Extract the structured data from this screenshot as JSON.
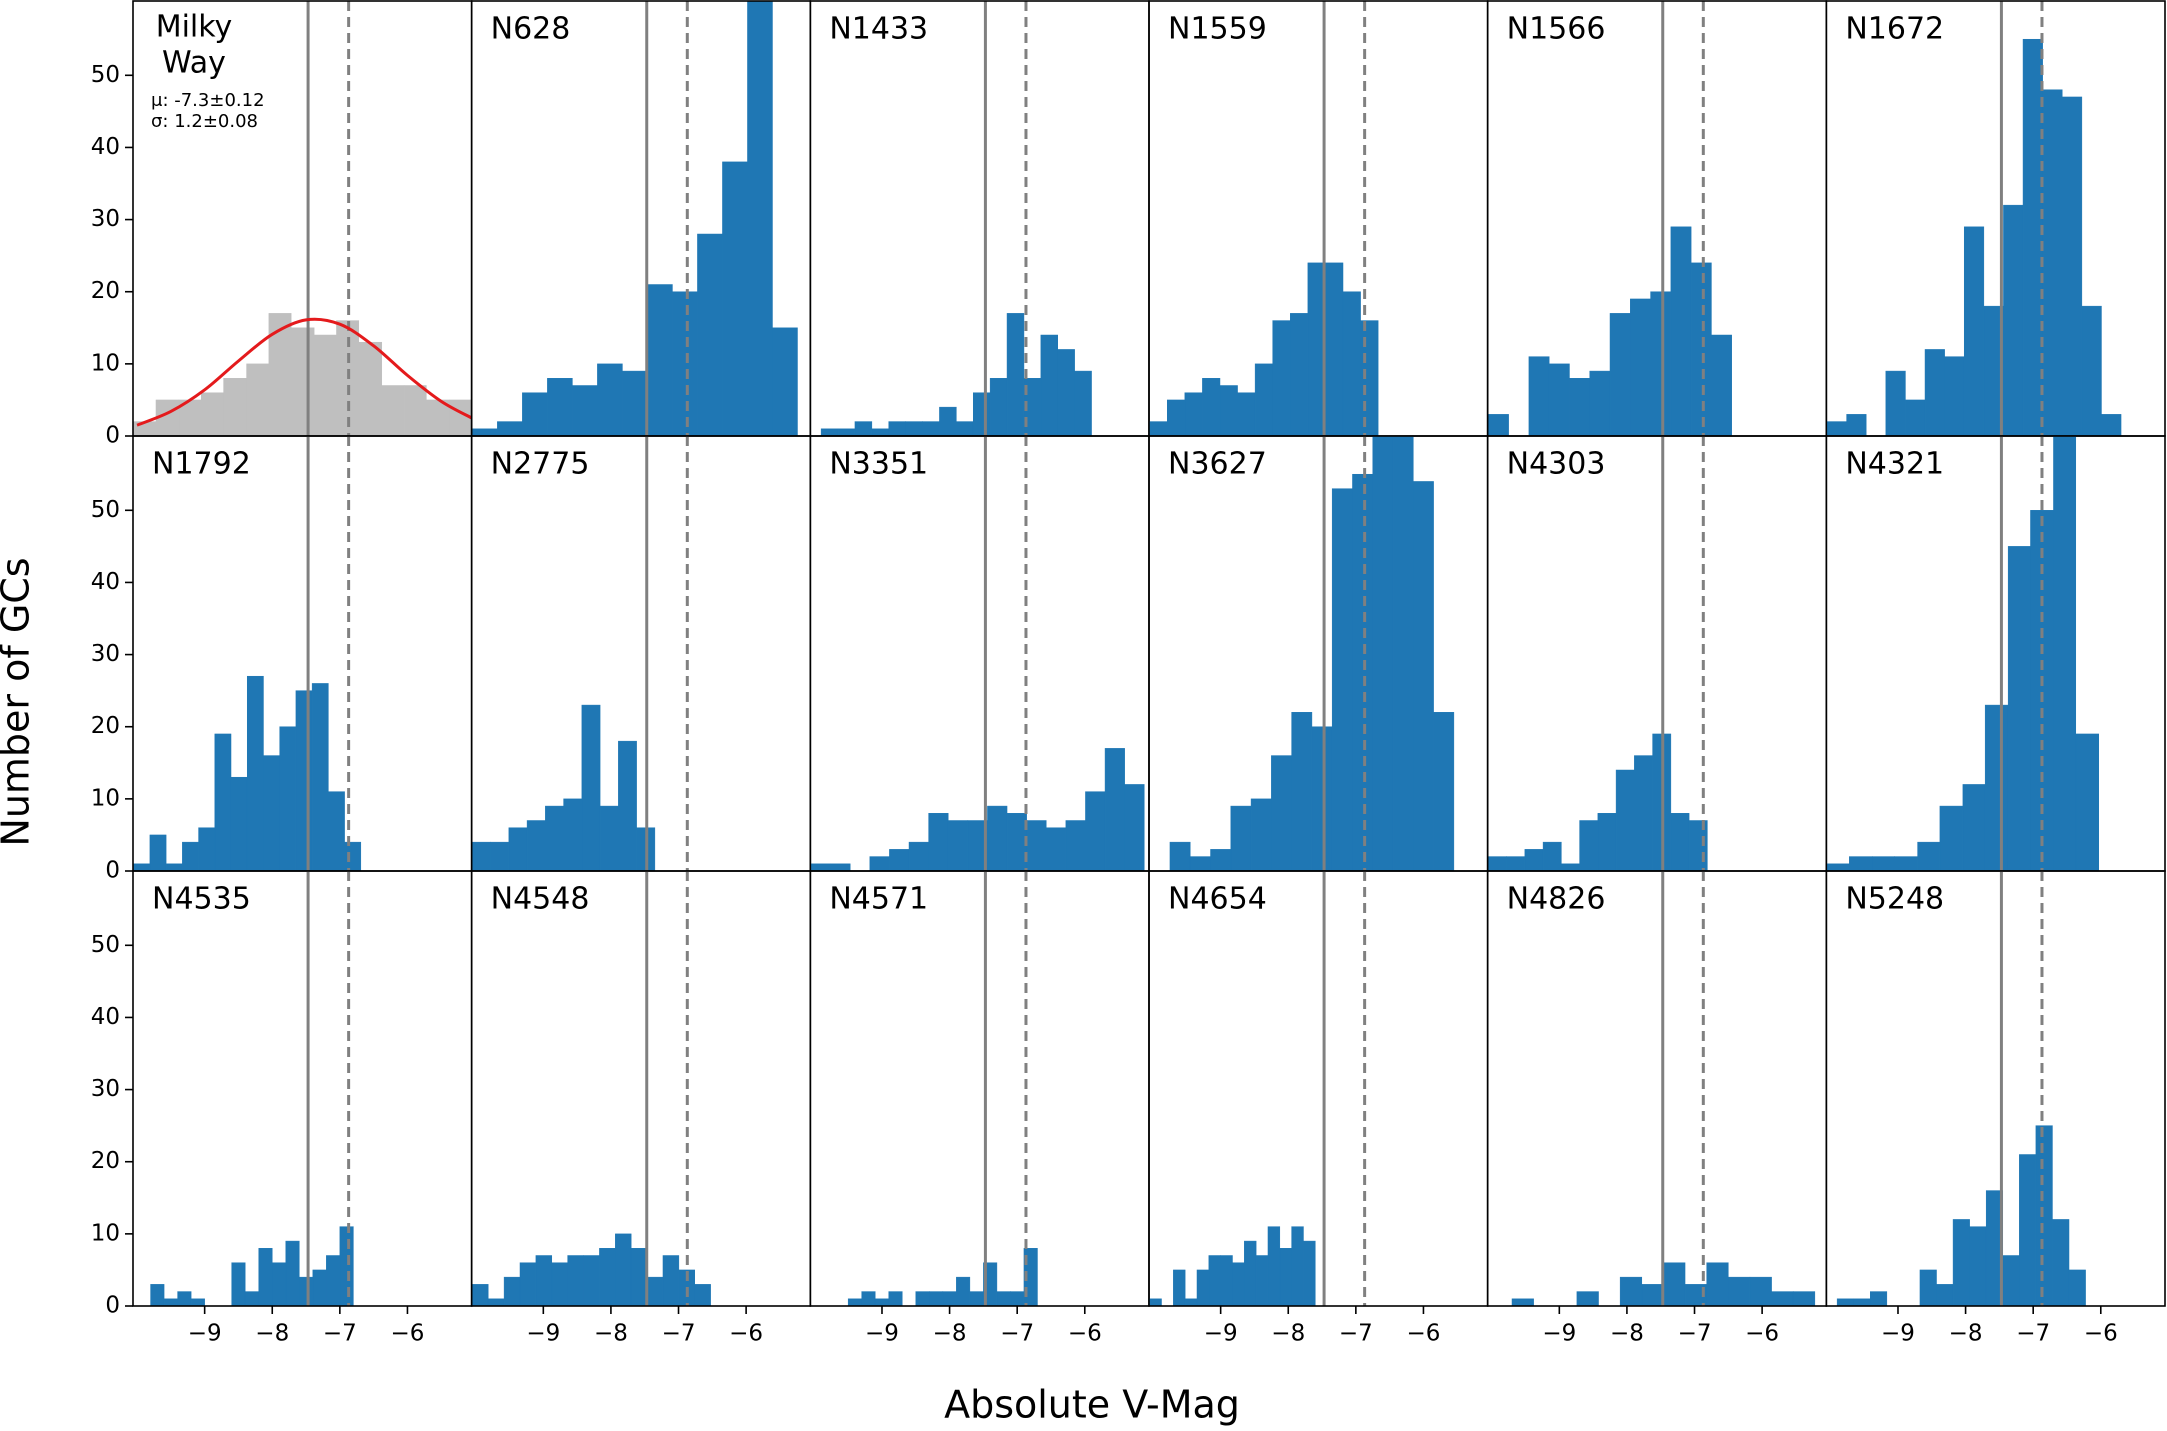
{
  "figure": {
    "xlabel": "Absolute V-Mag",
    "ylabel": "Number of GCs",
    "vlines": [
      {
        "x": -7.47,
        "dashed": false,
        "color": "#808080"
      },
      {
        "x": -6.87,
        "dashed": true,
        "color": "#808080"
      }
    ]
  },
  "chart_data": [
    {
      "type": "histogram",
      "title": [
        "Milky",
        "Way"
      ],
      "annotations": [
        "μ: -7.3±0.12",
        "σ: 1.2±0.08"
      ],
      "color": "#bfbfbf",
      "xlim": [
        -10.06,
        -5.05
      ],
      "ylim": [
        0,
        60.3
      ],
      "yticks": [
        0,
        10,
        20,
        30,
        40,
        50
      ],
      "bins": [
        -10.05,
        -9.72,
        -9.38,
        -9.05,
        -8.72,
        -8.38,
        -8.05,
        -7.72,
        -7.38,
        -7.05,
        -6.72,
        -6.38,
        -6.05,
        -5.72,
        -5.38,
        -5.05
      ],
      "counts": [
        2,
        5,
        5,
        6,
        8,
        10,
        17,
        15,
        14,
        16,
        13,
        7,
        7,
        5,
        5
      ],
      "fit": {
        "color": "#e41a1c",
        "x": [
          -10,
          -9.5,
          -9,
          -8.5,
          -8,
          -7.5,
          -7,
          -6.5,
          -6,
          -5.5,
          -5.05
        ],
        "y": [
          1.5,
          3.4,
          6.4,
          10.4,
          14.1,
          16.1,
          15.5,
          12.5,
          8.4,
          4.8,
          2.5
        ]
      }
    },
    {
      "type": "histogram",
      "title": "N628",
      "color": "#1f77b4",
      "xlim": [
        -10.06,
        -5.05
      ],
      "ylim": [
        0,
        60.3
      ],
      "bins": [
        -10.05,
        -9.68,
        -9.31,
        -8.94,
        -8.57,
        -8.2,
        -7.83,
        -7.46,
        -7.09,
        -6.72,
        -6.35,
        -5.98,
        -5.61,
        -5.24
      ],
      "counts": [
        1,
        2,
        6,
        8,
        7,
        10,
        9,
        21,
        20,
        28,
        38,
        62,
        15
      ]
    },
    {
      "type": "histogram",
      "title": "N1433",
      "color": "#1f77b4",
      "xlim": [
        -10.06,
        -5.05
      ],
      "ylim": [
        0,
        60.3
      ],
      "bins": [
        -9.9,
        -9.65,
        -9.4,
        -9.15,
        -8.9,
        -8.65,
        -8.4,
        -8.15,
        -7.9,
        -7.65,
        -7.4,
        -7.15,
        -6.9,
        -6.65,
        -6.4,
        -6.15,
        -5.9
      ],
      "counts": [
        1,
        1,
        2,
        1,
        2,
        2,
        2,
        4,
        2,
        6,
        8,
        17,
        8,
        14,
        12,
        9
      ]
    },
    {
      "type": "histogram",
      "title": "N1559",
      "color": "#1f77b4",
      "xlim": [
        -10.06,
        -5.05
      ],
      "ylim": [
        0,
        60.3
      ],
      "bins": [
        -10.05,
        -9.79,
        -9.53,
        -9.27,
        -9.01,
        -8.75,
        -8.49,
        -8.23,
        -7.97,
        -7.71,
        -7.45,
        -7.19,
        -6.93,
        -6.67
      ],
      "counts": [
        2,
        5,
        6,
        8,
        7,
        6,
        10,
        16,
        17,
        24,
        24,
        20,
        16
      ]
    },
    {
      "type": "histogram",
      "title": "N1566",
      "color": "#1f77b4",
      "xlim": [
        -10.06,
        -5.05
      ],
      "ylim": [
        0,
        60.3
      ],
      "bins": [
        -10.05,
        -9.75,
        -9.45,
        -9.15,
        -8.85,
        -8.55,
        -8.25,
        -7.95,
        -7.65,
        -7.35,
        -7.05,
        -6.75,
        -6.45
      ],
      "counts": [
        3,
        0,
        11,
        10,
        8,
        9,
        17,
        19,
        20,
        29,
        24,
        14
      ]
    },
    {
      "type": "histogram",
      "title": "N1672",
      "color": "#1f77b4",
      "xlim": [
        -10.06,
        -5.05
      ],
      "ylim": [
        0,
        60.3
      ],
      "bins": [
        -10.05,
        -9.76,
        -9.47,
        -9.18,
        -8.89,
        -8.6,
        -8.31,
        -8.02,
        -7.73,
        -7.44,
        -7.15,
        -6.86,
        -6.57,
        -6.28,
        -5.99,
        -5.7
      ],
      "counts": [
        2,
        3,
        0,
        9,
        5,
        12,
        11,
        29,
        18,
        32,
        55,
        48,
        47,
        18,
        3
      ]
    },
    {
      "type": "histogram",
      "title": "N1792",
      "color": "#1f77b4",
      "xlim": [
        -10.06,
        -5.05
      ],
      "ylim": [
        0,
        60.3
      ],
      "yticks": [
        0,
        10,
        20,
        30,
        40,
        50
      ],
      "bins": [
        -10.05,
        -9.81,
        -9.57,
        -9.33,
        -9.09,
        -8.85,
        -8.61,
        -8.37,
        -8.13,
        -7.89,
        -7.65,
        -7.41,
        -7.17,
        -6.93,
        -6.69
      ],
      "counts": [
        1,
        5,
        1,
        4,
        6,
        19,
        13,
        27,
        16,
        20,
        25,
        26,
        11,
        4
      ]
    },
    {
      "type": "histogram",
      "title": "N2775",
      "color": "#1f77b4",
      "xlim": [
        -10.06,
        -5.05
      ],
      "ylim": [
        0,
        60.3
      ],
      "bins": [
        -10.05,
        -9.78,
        -9.51,
        -9.24,
        -8.97,
        -8.7,
        -8.43,
        -8.16,
        -7.89,
        -7.62,
        -7.35
      ],
      "counts": [
        4,
        4,
        6,
        7,
        9,
        10,
        23,
        9,
        18,
        6
      ]
    },
    {
      "type": "histogram",
      "title": "N3351",
      "color": "#1f77b4",
      "xlim": [
        -10.06,
        -5.05
      ],
      "ylim": [
        0,
        60.3
      ],
      "bins": [
        -10.05,
        -9.76,
        -9.47,
        -9.18,
        -8.89,
        -8.6,
        -8.31,
        -8.02,
        -7.73,
        -7.44,
        -7.15,
        -6.86,
        -6.57,
        -6.28,
        -5.99,
        -5.7,
        -5.41,
        -5.12
      ],
      "counts": [
        1,
        1,
        0,
        2,
        3,
        4,
        8,
        7,
        7,
        9,
        8,
        7,
        6,
        7,
        11,
        17,
        12
      ]
    },
    {
      "type": "histogram",
      "title": "N3627",
      "color": "#1f77b4",
      "xlim": [
        -10.06,
        -5.05
      ],
      "ylim": [
        0,
        60.3
      ],
      "bins": [
        -10.05,
        -9.75,
        -9.45,
        -9.15,
        -8.85,
        -8.55,
        -8.25,
        -7.95,
        -7.65,
        -7.35,
        -7.05,
        -6.75,
        -6.45,
        -6.15,
        -5.85,
        -5.55
      ],
      "counts": [
        0,
        4,
        2,
        3,
        9,
        10,
        16,
        22,
        20,
        53,
        55,
        62,
        62,
        54,
        22
      ]
    },
    {
      "type": "histogram",
      "title": "N4303",
      "color": "#1f77b4",
      "xlim": [
        -10.06,
        -5.05
      ],
      "ylim": [
        0,
        60.3
      ],
      "bins": [
        -10.05,
        -9.78,
        -9.51,
        -9.24,
        -8.97,
        -8.7,
        -8.43,
        -8.16,
        -7.89,
        -7.62,
        -7.35,
        -7.08,
        -6.81
      ],
      "counts": [
        2,
        2,
        3,
        4,
        1,
        7,
        8,
        14,
        16,
        19,
        8,
        7
      ]
    },
    {
      "type": "histogram",
      "title": "N4321",
      "color": "#1f77b4",
      "xlim": [
        -10.06,
        -5.05
      ],
      "ylim": [
        0,
        60.3
      ],
      "bins": [
        -10.05,
        -9.72,
        -9.38,
        -9.05,
        -8.71,
        -8.38,
        -8.04,
        -7.71,
        -7.37,
        -7.04,
        -6.7,
        -6.37,
        -6.03
      ],
      "counts": [
        1,
        2,
        2,
        2,
        4,
        9,
        12,
        23,
        45,
        50,
        62,
        19
      ]
    },
    {
      "type": "histogram",
      "title": "N4535",
      "color": "#1f77b4",
      "xlim": [
        -10.06,
        -5.05
      ],
      "ylim": [
        0,
        60.3
      ],
      "yticks": [
        0,
        10,
        20,
        30,
        40,
        50
      ],
      "xticks": [
        {
          "value": -9,
          "label": "−9"
        },
        {
          "value": -8,
          "label": "−8"
        },
        {
          "value": -7,
          "label": "−7"
        },
        {
          "value": -6,
          "label": "−6"
        }
      ],
      "bins": [
        -9.8,
        -9.6,
        -9.4,
        -9.2,
        -9.0,
        -8.8,
        -8.6,
        -8.4,
        -8.2,
        -8.0,
        -7.8,
        -7.6,
        -7.4,
        -7.2,
        -7.0,
        -6.8
      ],
      "counts": [
        3,
        1,
        2,
        1,
        0,
        0,
        6,
        2,
        8,
        6,
        9,
        4,
        5,
        7,
        11
      ]
    },
    {
      "type": "histogram",
      "title": "N4548",
      "color": "#1f77b4",
      "xlim": [
        -10.06,
        -5.05
      ],
      "ylim": [
        0,
        60.3
      ],
      "xticks": [
        {
          "value": -9,
          "label": "−9"
        },
        {
          "value": -8,
          "label": "−8"
        },
        {
          "value": -7,
          "label": "−7"
        },
        {
          "value": -6,
          "label": "−6"
        }
      ],
      "bins": [
        -10.05,
        -9.815,
        -9.58,
        -9.345,
        -9.11,
        -8.875,
        -8.64,
        -8.405,
        -8.17,
        -7.935,
        -7.7,
        -7.465,
        -7.23,
        -6.995,
        -6.76,
        -6.525
      ],
      "counts": [
        3,
        1,
        4,
        6,
        7,
        6,
        7,
        7,
        8,
        10,
        8,
        4,
        7,
        5,
        3
      ]
    },
    {
      "type": "histogram",
      "title": "N4571",
      "color": "#1f77b4",
      "xlim": [
        -10.06,
        -5.05
      ],
      "ylim": [
        0,
        60.3
      ],
      "xticks": [
        {
          "value": -9,
          "label": "−9"
        },
        {
          "value": -8,
          "label": "−8"
        },
        {
          "value": -7,
          "label": "−7"
        },
        {
          "value": -6,
          "label": "−6"
        }
      ],
      "bins": [
        -9.5,
        -9.3,
        -9.1,
        -8.9,
        -8.7,
        -8.5,
        -8.3,
        -8.1,
        -7.9,
        -7.7,
        -7.5,
        -7.3,
        -7.1,
        -6.9,
        -6.7
      ],
      "counts": [
        1,
        2,
        1,
        2,
        0,
        2,
        2,
        2,
        4,
        2,
        6,
        2,
        2,
        8
      ]
    },
    {
      "type": "histogram",
      "title": "N4654",
      "color": "#1f77b4",
      "xlim": [
        -10.06,
        -5.05
      ],
      "ylim": [
        0,
        60.3
      ],
      "xticks": [
        {
          "value": -9,
          "label": "−9"
        },
        {
          "value": -8,
          "label": "−8"
        },
        {
          "value": -7,
          "label": "−7"
        },
        {
          "value": -6,
          "label": "−6"
        }
      ],
      "bins": [
        -10.05,
        -9.875,
        -9.7,
        -9.525,
        -9.35,
        -9.175,
        -9.0,
        -8.825,
        -8.65,
        -8.475,
        -8.3,
        -8.125,
        -7.95,
        -7.775,
        -7.6
      ],
      "counts": [
        1,
        0,
        5,
        1,
        5,
        7,
        7,
        6,
        9,
        7,
        11,
        8,
        11,
        9
      ]
    },
    {
      "type": "histogram",
      "title": "N4826",
      "color": "#1f77b4",
      "xlim": [
        -10.06,
        -5.05
      ],
      "ylim": [
        0,
        60.3
      ],
      "xticks": [
        {
          "value": -9,
          "label": "−9"
        },
        {
          "value": -8,
          "label": "−8"
        },
        {
          "value": -7,
          "label": "−7"
        },
        {
          "value": -6,
          "label": "−6"
        }
      ],
      "bins": [
        -9.7,
        -9.38,
        -9.06,
        -8.74,
        -8.42,
        -8.1,
        -7.78,
        -7.46,
        -7.14,
        -6.82,
        -6.5,
        -6.18,
        -5.86,
        -5.54,
        -5.22
      ],
      "counts": [
        1,
        0,
        0,
        2,
        0,
        4,
        3,
        6,
        3,
        6,
        4,
        4,
        2,
        2
      ]
    },
    {
      "type": "histogram",
      "title": "N5248",
      "color": "#1f77b4",
      "xlim": [
        -10.06,
        -5.05
      ],
      "ylim": [
        0,
        60.3
      ],
      "xticks": [
        {
          "value": -9,
          "label": "−9"
        },
        {
          "value": -8,
          "label": "−8"
        },
        {
          "value": -7,
          "label": "−7"
        },
        {
          "value": -6,
          "label": "−6"
        }
      ],
      "bins": [
        -9.9,
        -9.655,
        -9.41,
        -9.165,
        -8.92,
        -8.675,
        -8.43,
        -8.185,
        -7.94,
        -7.695,
        -7.45,
        -7.205,
        -6.96,
        -6.715,
        -6.47,
        -6.225
      ],
      "counts": [
        1,
        1,
        2,
        0,
        0,
        5,
        3,
        12,
        11,
        16,
        7,
        21,
        25,
        12,
        5
      ]
    }
  ]
}
